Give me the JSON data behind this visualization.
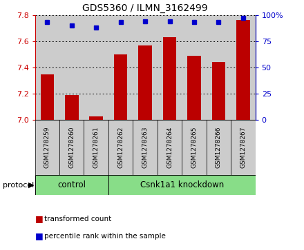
{
  "title": "GDS5360 / ILMN_3162499",
  "samples": [
    "GSM1278259",
    "GSM1278260",
    "GSM1278261",
    "GSM1278262",
    "GSM1278263",
    "GSM1278264",
    "GSM1278265",
    "GSM1278266",
    "GSM1278267"
  ],
  "bar_values": [
    7.35,
    7.19,
    7.03,
    7.5,
    7.57,
    7.63,
    7.49,
    7.44,
    7.76
  ],
  "dot_values": [
    93,
    90,
    88,
    93,
    94,
    94,
    93,
    93,
    97
  ],
  "ylim_left": [
    7.0,
    7.8
  ],
  "ylim_right": [
    0,
    100
  ],
  "yticks_left": [
    7.0,
    7.2,
    7.4,
    7.6,
    7.8
  ],
  "yticks_right": [
    0,
    25,
    50,
    75,
    100
  ],
  "bar_color": "#bb0000",
  "dot_color": "#0000cc",
  "ctrl_n": 3,
  "kd_n": 6,
  "control_label": "control",
  "knockdown_label": "Csnk1a1 knockdown",
  "protocol_label": "protocol",
  "legend_bar_label": "transformed count",
  "legend_dot_label": "percentile rank within the sample",
  "group_bg_color": "#88dd88",
  "sample_bg_color": "#cccccc",
  "grid_color": "#555555",
  "right_axis_color": "#0000cc",
  "left_axis_color": "#cc0000"
}
